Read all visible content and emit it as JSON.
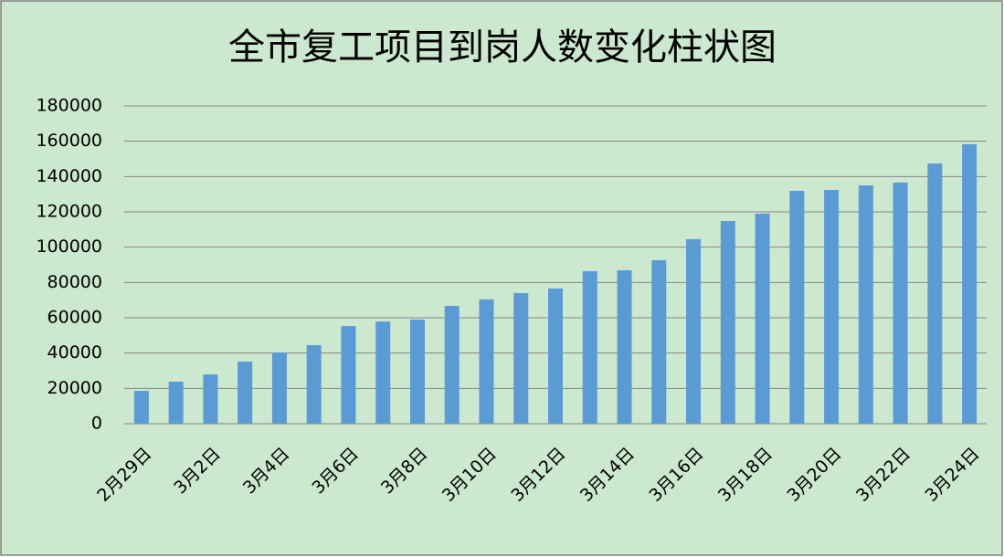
{
  "chart_data": {
    "type": "bar",
    "title": "全市复工项目到岗人数变化柱状图",
    "categories": [
      "2月29日",
      null,
      "3月2日",
      null,
      "3月4日",
      null,
      "3月6日",
      null,
      "3月8日",
      null,
      "3月10日",
      null,
      "3月12日",
      null,
      "3月14日",
      null,
      "3月16日",
      null,
      "3月18日",
      null,
      "3月20日",
      null,
      "3月22日",
      null,
      "3月24日"
    ],
    "values": [
      18600,
      23800,
      27900,
      35200,
      40300,
      44500,
      55300,
      57900,
      59000,
      66700,
      70400,
      74000,
      76600,
      86400,
      86900,
      92600,
      104500,
      114800,
      119000,
      131900,
      132400,
      135000,
      136600,
      147400,
      158300
    ],
    "color": "#5b9bd5",
    "ylim": [
      0,
      180000
    ],
    "yticks": [
      0,
      20000,
      40000,
      60000,
      80000,
      100000,
      120000,
      140000,
      160000,
      180000
    ],
    "grid": true
  }
}
